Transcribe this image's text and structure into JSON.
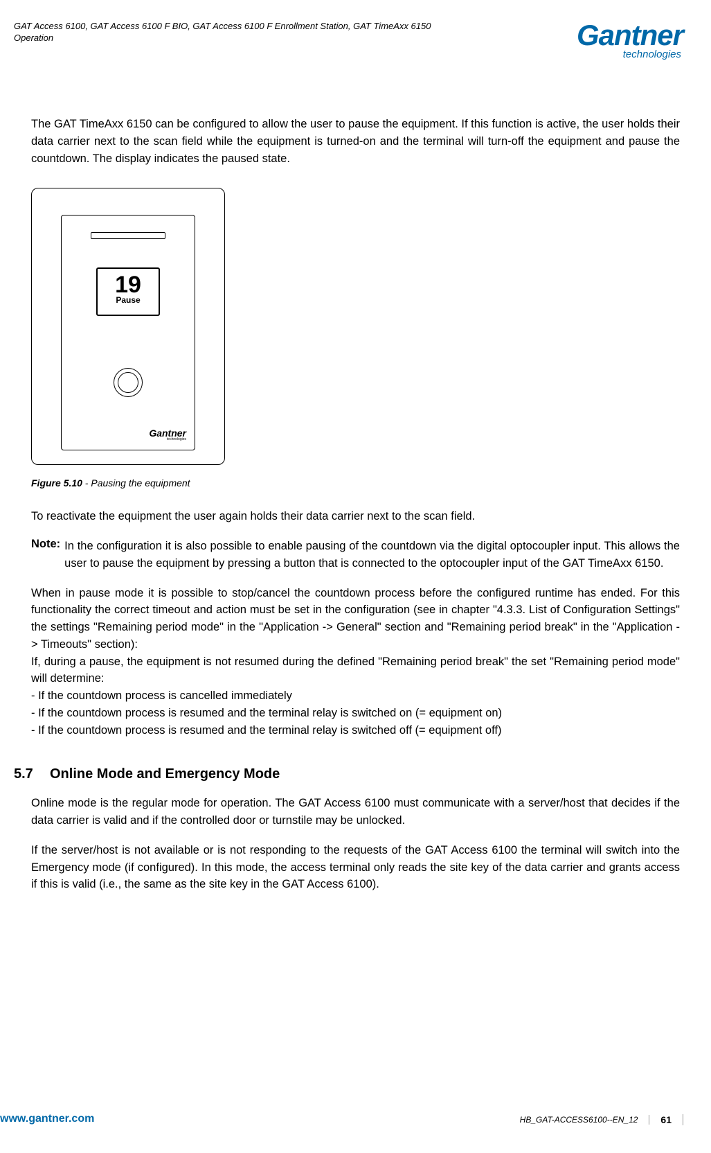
{
  "header": {
    "title_line1": "GAT Access 6100, GAT Access 6100 F BIO, GAT Access 6100 F Enrollment Station, GAT TimeAxx 6150",
    "title_line2": "Operation"
  },
  "logo": {
    "main": "Gantner",
    "sub": "technologies",
    "color": "#0068a8"
  },
  "paragraphs": {
    "intro": "The GAT TimeAxx 6150 can be configured to allow the user to pause the equipment. If this function is active, the user holds their data carrier next to the scan field while the equipment is turned-on and the terminal will turn-off the equipment and pause the countdown. The display indicates the paused state.",
    "reactivate": "To reactivate the equipment the user again holds their data carrier next to the scan field.",
    "note_label": "Note:",
    "note_text": "In the configuration it is also possible to enable pausing of the countdown via the digital optocoupler input. This allows the user to pause the equipment by pressing a button that is connected to the optocoupler input of the GAT TimeAxx 6150.",
    "pause_mode_1": "When in pause mode it is possible to stop/cancel the countdown process before the configured runtime has ended. For this functionality the correct timeout and action must be set in the configuration (see in chapter \"4.3.3. List of Configuration Settings\" the settings \"Remaining period mode\" in the \"Application -> General\" section and \"Remaining period break\" in the \"Application -> Timeouts\" section):",
    "pause_mode_2": "If, during a pause, the equipment is not resumed during the defined \"Remaining period break\" the set \"Remaining period mode\" will determine:",
    "bullets": [
      "-  If the countdown process is cancelled immediately",
      "-  If the countdown process is resumed and the terminal relay is switched on (= equipment on)",
      "-  If the countdown process is resumed and the terminal relay is switched off (= equipment off)"
    ],
    "section_num": "5.7",
    "section_title": "Online Mode and Emergency Mode",
    "online_1": "Online mode is the regular mode for operation. The GAT Access 6100 must communicate with a server/host that decides if the data carrier is valid and if the controlled door or turnstile may be unlocked.",
    "online_2": "If the server/host is not available or is not responding to the requests of the GAT Access 6100 the terminal will switch into the Emergency mode (if configured). In this mode, the access terminal only reads the site key of the data carrier and grants access if this is valid (i.e., the same as the site key in the GAT Access 6100)."
  },
  "device": {
    "number": "19",
    "pause_label": "Pause",
    "brand_main": "Gantner",
    "brand_sub": "technologies"
  },
  "figure": {
    "label": "Figure 5.10",
    "caption": " - Pausing the equipment"
  },
  "footer": {
    "url": "www.gantner.com",
    "doc_id": "HB_GAT-ACCESS6100--EN_12",
    "page": "61"
  }
}
